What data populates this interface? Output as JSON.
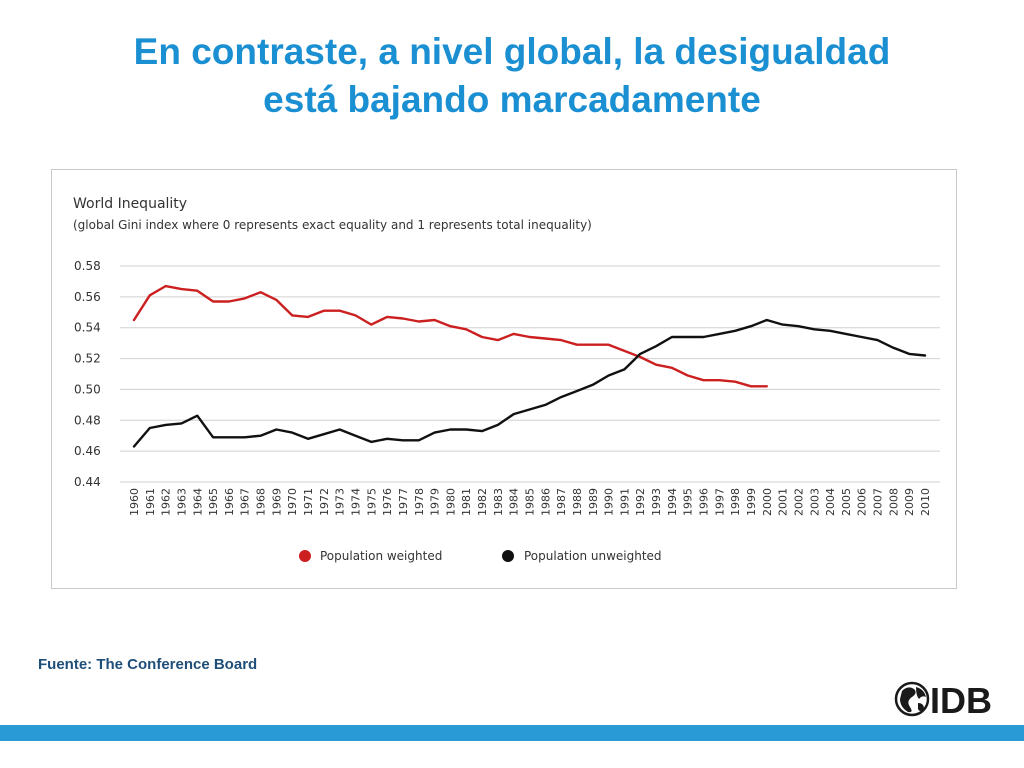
{
  "slide": {
    "title_line1": "En contraste, a nivel global, la desigualdad",
    "title_line2": "está bajando marcadamente",
    "source": "Fuente:  The Conference Board",
    "logo_text": "IDB"
  },
  "colors": {
    "title": "#1a8fd1",
    "weighted": "#cc1f1f",
    "unweighted": "#111111",
    "bar": "#2a9ad6"
  },
  "chart_data": {
    "type": "line",
    "title": "World Inequality",
    "subtitle": "(global Gini index where 0 represents exact equality and 1 represents total inequality)",
    "xlabel": "",
    "ylabel": "",
    "ylim": [
      0.44,
      0.58
    ],
    "yticks": [
      "0.58",
      "0.56",
      "0.54",
      "0.52",
      "0.50",
      "0.48",
      "0.46",
      "0.44"
    ],
    "grid": true,
    "legend": "bottom",
    "x": [
      1960,
      1961,
      1962,
      1963,
      1964,
      1965,
      1966,
      1967,
      1968,
      1969,
      1970,
      1971,
      1972,
      1973,
      1974,
      1975,
      1976,
      1977,
      1978,
      1979,
      1980,
      1981,
      1982,
      1983,
      1984,
      1985,
      1986,
      1987,
      1988,
      1989,
      1990,
      1991,
      1992,
      1993,
      1994,
      1995,
      1996,
      1997,
      1998,
      1999,
      2000,
      2001,
      2002,
      2003,
      2004,
      2005,
      2006,
      2007,
      2008,
      2009,
      2010
    ],
    "series": [
      {
        "name": "Population weighted",
        "color": "#cc1f1f",
        "values": [
          0.545,
          0.561,
          0.567,
          0.565,
          0.564,
          0.557,
          0.557,
          0.559,
          0.563,
          0.558,
          0.548,
          0.547,
          0.551,
          0.551,
          0.548,
          0.542,
          0.547,
          0.546,
          0.544,
          0.545,
          0.541,
          0.539,
          0.534,
          0.532,
          0.536,
          0.534,
          0.533,
          0.532,
          0.529,
          0.529,
          0.529,
          0.525,
          0.521,
          0.516,
          0.514,
          0.509,
          0.506,
          0.506,
          0.505,
          0.502,
          0.502,
          null,
          null,
          null,
          null,
          null,
          null,
          null,
          null,
          null,
          null
        ]
      },
      {
        "name": "Population unweighted",
        "color": "#111111",
        "values": [
          0.463,
          0.475,
          0.477,
          0.478,
          0.483,
          0.469,
          0.469,
          0.469,
          0.47,
          0.474,
          0.472,
          0.468,
          0.471,
          0.474,
          0.47,
          0.466,
          0.468,
          0.467,
          0.467,
          0.472,
          0.474,
          0.474,
          0.473,
          0.477,
          0.484,
          0.487,
          0.49,
          0.495,
          0.499,
          0.503,
          0.509,
          0.513,
          0.523,
          0.528,
          0.534,
          0.534,
          0.534,
          0.536,
          0.538,
          0.541,
          0.545,
          0.542,
          0.541,
          0.539,
          0.538,
          0.536,
          0.534,
          0.532,
          0.527,
          0.523,
          0.522
        ]
      }
    ]
  }
}
